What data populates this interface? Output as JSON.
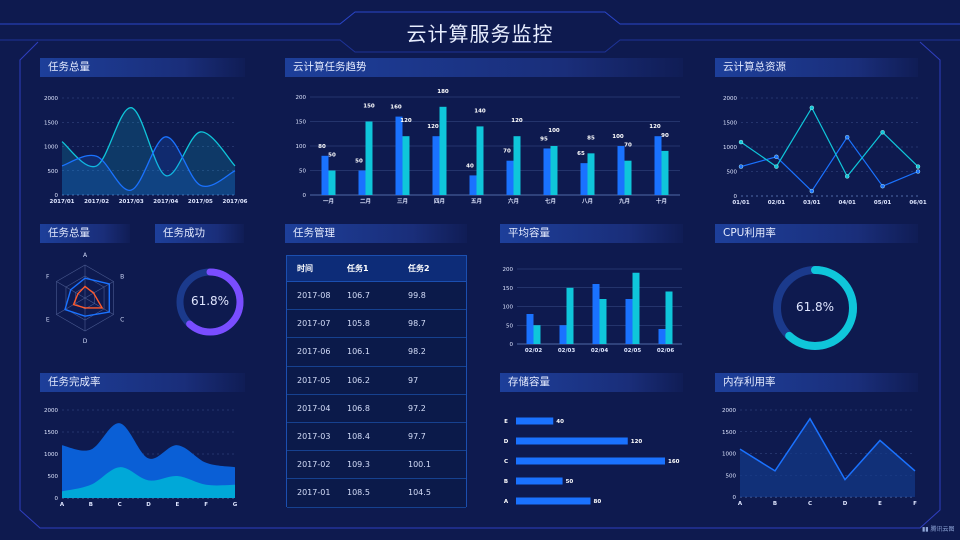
{
  "title": "云计算服务监控",
  "colors": {
    "bg": "#0e1a4f",
    "blue": "#1a72ff",
    "cyan": "#0fc6da",
    "purple": "#7a4dff",
    "orange": "#ff5a2c",
    "track": "#1b3a8c"
  },
  "panels": {
    "total_tasks": "任务总量",
    "trend": "云计算任务趋势",
    "resources": "云计算总资源",
    "radar": "任务总量",
    "success": "任务成功",
    "manage": "任务管理",
    "avg_capacity": "平均容量",
    "cpu": "CPU利用率",
    "completion": "任务完成率",
    "storage": "存储容量",
    "memory": "内存利用率"
  },
  "watermark": "腾讯云图",
  "chart_data": [
    {
      "id": "total_tasks",
      "type": "area",
      "smooth": true,
      "x": [
        "2017/01",
        "2017/02",
        "2017/03",
        "2017/04",
        "2017/05",
        "2017/06"
      ],
      "ylim": [
        0,
        2000
      ],
      "yticks": [
        0,
        500,
        1000,
        1500,
        2000
      ],
      "grid": true,
      "series": [
        {
          "values": [
            600,
            800,
            100,
            1200,
            200,
            500
          ]
        },
        {
          "values": [
            1100,
            600,
            1800,
            400,
            1300,
            600
          ]
        }
      ]
    },
    {
      "id": "trend",
      "type": "bar",
      "categories": [
        "一月",
        "二月",
        "三月",
        "四月",
        "五月",
        "六月",
        "七月",
        "八月",
        "九月",
        "十月"
      ],
      "ylim": [
        0,
        200
      ],
      "yticks": [
        0,
        50,
        100,
        150,
        200
      ],
      "grid": true,
      "series": [
        {
          "values": [
            80,
            50,
            160,
            120,
            40,
            70,
            95,
            65,
            100,
            120
          ]
        },
        {
          "values": [
            50,
            150,
            120,
            180,
            140,
            120,
            100,
            85,
            70,
            90
          ]
        }
      ]
    },
    {
      "id": "resources",
      "type": "line",
      "x": [
        "01/01",
        "02/01",
        "03/01",
        "04/01",
        "05/01",
        "06/01"
      ],
      "ylim": [
        0,
        2000
      ],
      "yticks": [
        0,
        500,
        1000,
        1500,
        2000
      ],
      "grid": true,
      "series": [
        {
          "values": [
            600,
            800,
            100,
            1200,
            200,
            500
          ]
        },
        {
          "values": [
            1100,
            600,
            1800,
            400,
            1300,
            600
          ]
        }
      ]
    },
    {
      "id": "radar",
      "type": "radar",
      "indicators": [
        "A",
        "B",
        "C",
        "D",
        "E",
        "F"
      ],
      "max": 1,
      "series": [
        {
          "values": [
            0.6,
            0.85,
            0.85,
            0.55,
            0.7,
            0.5
          ]
        },
        {
          "values": [
            0.35,
            0.3,
            0.6,
            0.3,
            0.4,
            0.25
          ]
        }
      ]
    },
    {
      "id": "success",
      "type": "pie",
      "value": 61.8,
      "label": "61.8%"
    },
    {
      "id": "avg_capacity",
      "type": "bar",
      "categories": [
        "02/02",
        "02/03",
        "02/04",
        "02/05",
        "02/06"
      ],
      "ylim": [
        0,
        200
      ],
      "yticks": [
        0,
        50,
        100,
        150,
        200
      ],
      "grid": true,
      "series": [
        {
          "values": [
            80,
            50,
            160,
            120,
            40
          ]
        },
        {
          "values": [
            50,
            150,
            120,
            190,
            140
          ]
        }
      ]
    },
    {
      "id": "cpu",
      "type": "pie",
      "value": 61.8,
      "label": "61.8%"
    },
    {
      "id": "completion",
      "type": "area",
      "smooth": true,
      "stacked": true,
      "x": [
        "A",
        "B",
        "C",
        "D",
        "E",
        "F",
        "G"
      ],
      "ylim": [
        0,
        2000
      ],
      "yticks": [
        0,
        500,
        1000,
        1500,
        2000
      ],
      "grid": true,
      "series": [
        {
          "values": [
            150,
            300,
            700,
            400,
            500,
            300,
            300
          ]
        },
        {
          "values": [
            1050,
            800,
            1000,
            500,
            700,
            500,
            400
          ]
        }
      ]
    },
    {
      "id": "storage",
      "type": "bar",
      "orientation": "horizontal",
      "categories": [
        "A",
        "B",
        "C",
        "D",
        "E"
      ],
      "values": [
        80,
        50,
        160,
        120,
        40
      ]
    },
    {
      "id": "memory",
      "type": "area",
      "x": [
        "A",
        "B",
        "C",
        "D",
        "E",
        "F"
      ],
      "ylim": [
        0,
        2000
      ],
      "yticks": [
        0,
        500,
        1000,
        1500,
        2000
      ],
      "grid": true,
      "series": [
        {
          "values": [
            1100,
            600,
            1800,
            400,
            1300,
            600
          ]
        }
      ]
    }
  ],
  "table": {
    "headers": [
      "时间",
      "任务1",
      "任务2"
    ],
    "rows": [
      [
        "2017-08",
        "106.7",
        "99.8"
      ],
      [
        "2017-07",
        "105.8",
        "98.7"
      ],
      [
        "2017-06",
        "106.1",
        "98.2"
      ],
      [
        "2017-05",
        "106.2",
        "97"
      ],
      [
        "2017-04",
        "106.8",
        "97.2"
      ],
      [
        "2017-03",
        "108.4",
        "97.7"
      ],
      [
        "2017-02",
        "109.3",
        "100.1"
      ],
      [
        "2017-01",
        "108.5",
        "104.5"
      ]
    ]
  }
}
